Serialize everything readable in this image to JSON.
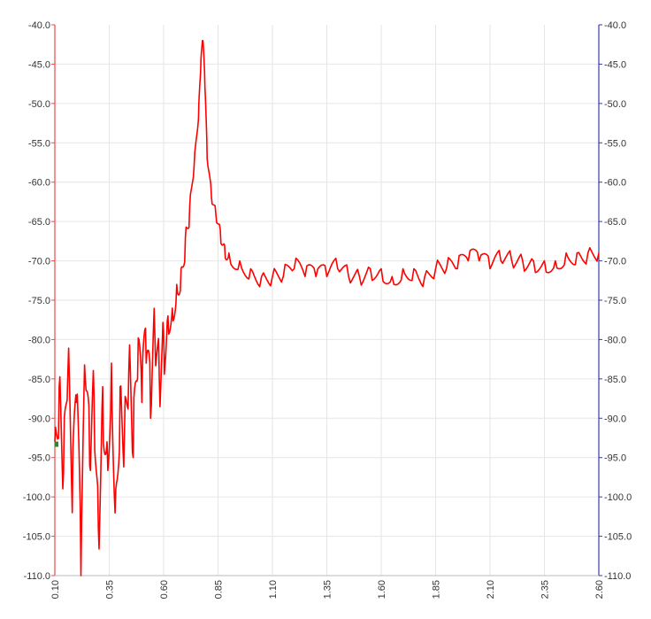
{
  "chart_data": {
    "type": "line",
    "title": "",
    "xlabel": "",
    "ylabel": "",
    "xlim": [
      0.1,
      2.6
    ],
    "ylim": [
      -110.0,
      -40.0
    ],
    "grid": true,
    "x_ticks": [
      "0.10",
      "0.35",
      "0.60",
      "0.85",
      "1.10",
      "1.35",
      "1.60",
      "1.85",
      "2.10",
      "2.35",
      "2.60"
    ],
    "y_ticks_left": [
      "-40.0",
      "-45.0",
      "-50.0",
      "-55.0",
      "-60.0",
      "-65.0",
      "-70.0",
      "-75.0",
      "-80.0",
      "-85.0",
      "-90.0",
      "-95.0",
      "-100.0",
      "-105.0",
      "-110.0"
    ],
    "y_ticks_right": [
      "-40.0",
      "-45.0",
      "-50.0",
      "-55.0",
      "-60.0",
      "-65.0",
      "-70.0",
      "-75.0",
      "-80.0",
      "-85.0",
      "-90.0",
      "-95.0",
      "-100.0",
      "-105.0",
      "-110.0"
    ],
    "colors": {
      "series": "#ff0000",
      "left_axis": "#e84a4a",
      "right_axis": "#3a3aaa",
      "grid": "#e6e6e6",
      "marker": "#2a8a2a"
    },
    "series": [
      {
        "color": "#ff0000",
        "x": [
          0.1,
          0.12,
          0.14,
          0.16,
          0.18,
          0.2,
          0.22,
          0.24,
          0.26,
          0.28,
          0.3,
          0.32,
          0.34,
          0.36,
          0.38,
          0.4,
          0.42,
          0.44,
          0.46,
          0.48,
          0.5,
          0.52,
          0.54,
          0.56,
          0.58,
          0.6,
          0.62,
          0.64,
          0.66,
          0.68,
          0.7,
          0.72,
          0.74,
          0.76,
          0.77,
          0.78,
          0.79,
          0.8,
          0.82,
          0.84,
          0.86,
          0.88,
          0.9,
          0.95,
          1.0,
          1.05,
          1.1,
          1.15,
          1.2,
          1.25,
          1.3,
          1.35,
          1.4,
          1.45,
          1.5,
          1.55,
          1.6,
          1.65,
          1.7,
          1.75,
          1.8,
          1.85,
          1.9,
          1.95,
          2.0,
          2.05,
          2.1,
          2.15,
          2.2,
          2.25,
          2.3,
          2.35,
          2.4,
          2.45,
          2.5,
          2.55,
          2.6
        ],
        "values": [
          -93,
          -86,
          -97,
          -84,
          -102,
          -88,
          -110,
          -85,
          -96,
          -87,
          -104,
          -86,
          -93,
          -83,
          -99,
          -86,
          -92,
          -84,
          -95,
          -85,
          -88,
          -83,
          -90,
          -80,
          -85,
          -79,
          -77,
          -76,
          -73,
          -71,
          -67,
          -63,
          -58,
          -52,
          -46,
          -42,
          -48,
          -57,
          -62,
          -64,
          -66,
          -68,
          -69,
          -70,
          -71,
          -72,
          -72,
          -72,
          -71,
          -72,
          -72,
          -72,
          -71,
          -72,
          -72,
          -71,
          -71,
          -72,
          -71,
          -71,
          -72,
          -71,
          -71,
          -71,
          -70,
          -70,
          -71,
          -70,
          -70,
          -70,
          -70,
          -70,
          -70,
          -69,
          -69,
          -69,
          -69
        ]
      }
    ]
  }
}
